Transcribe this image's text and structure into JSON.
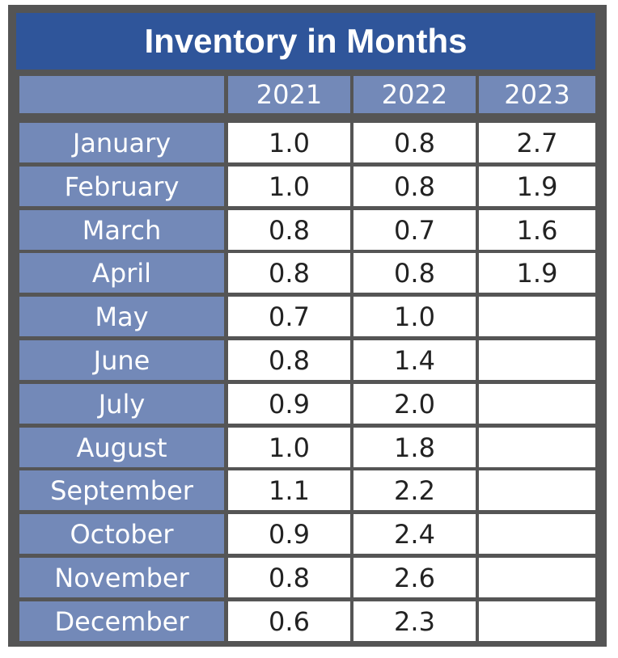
{
  "chart_data": {
    "type": "table",
    "title": "Inventory in Months",
    "columns": [
      "2021",
      "2022",
      "2023"
    ],
    "rows": [
      {
        "month": "January",
        "values": [
          "1.0",
          "0.8",
          "2.7"
        ]
      },
      {
        "month": "February",
        "values": [
          "1.0",
          "0.8",
          "1.9"
        ]
      },
      {
        "month": "March",
        "values": [
          "0.8",
          "0.7",
          "1.6"
        ]
      },
      {
        "month": "April",
        "values": [
          "0.8",
          "0.8",
          "1.9"
        ]
      },
      {
        "month": "May",
        "values": [
          "0.7",
          "1.0",
          ""
        ]
      },
      {
        "month": "June",
        "values": [
          "0.8",
          "1.4",
          ""
        ]
      },
      {
        "month": "July",
        "values": [
          "0.9",
          "2.0",
          ""
        ]
      },
      {
        "month": "August",
        "values": [
          "1.0",
          "1.8",
          ""
        ]
      },
      {
        "month": "September",
        "values": [
          "1.1",
          "2.2",
          ""
        ]
      },
      {
        "month": "October",
        "values": [
          "0.9",
          "2.4",
          ""
        ]
      },
      {
        "month": "November",
        "values": [
          "0.8",
          "2.6",
          ""
        ]
      },
      {
        "month": "December",
        "values": [
          "0.6",
          "2.3",
          ""
        ]
      }
    ]
  },
  "colors": {
    "title_bg": "#2f559a",
    "header_bg": "#7389b8",
    "frame": "#555555",
    "cell_bg": "#ffffff"
  }
}
